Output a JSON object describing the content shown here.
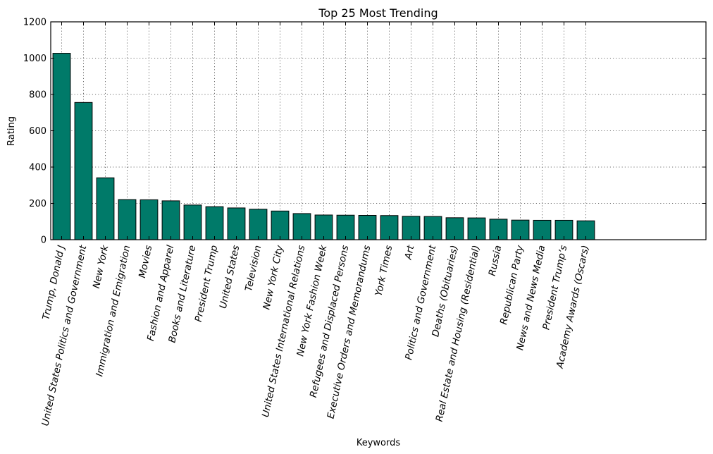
{
  "colors": {
    "bar": "#007a69",
    "bar_edge": "#000000"
  },
  "chart_data": {
    "type": "bar",
    "title": "Top 25 Most Trending",
    "xlabel": "Keywords",
    "ylabel": "Rating",
    "ylim": [
      0,
      1200
    ],
    "yticks": [
      "0",
      "200",
      "400",
      "600",
      "800",
      "1000",
      "1200"
    ],
    "grid": true,
    "categories": [
      "Trump, Donald J",
      "United States Politics and Government",
      "New York",
      "Immigration and Emigration",
      "Movies",
      "Fashion and Apparel",
      "Books and Literature",
      "President Trump",
      "United States",
      "Television",
      "New York City",
      "United States International Relations",
      "New York Fashion Week",
      "Refugees and Displaced Persons",
      "Executive Orders and Memorandums",
      "York Times",
      "Art",
      "Politics and Government",
      "Deaths (Obituaries)",
      "Real Estate and Housing (Residential)",
      "Russia",
      "Republican Party",
      "News and News Media",
      "President Trump’s",
      "Academy Awards (Oscars)"
    ],
    "values": [
      1027,
      756,
      341,
      221,
      220,
      214,
      191,
      182,
      175,
      168,
      158,
      144,
      136,
      135,
      134,
      133,
      129,
      128,
      121,
      120,
      113,
      108,
      107,
      107,
      104
    ]
  }
}
